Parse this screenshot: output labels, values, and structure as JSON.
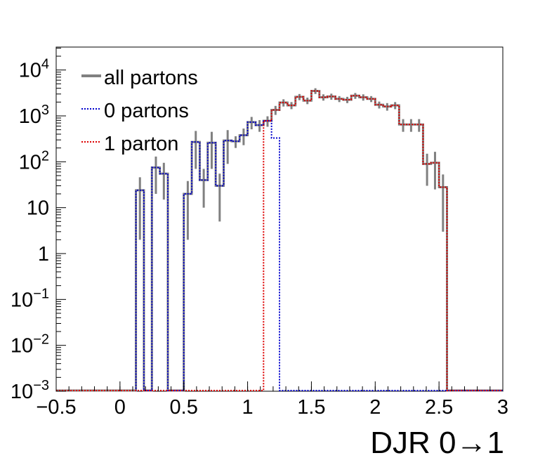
{
  "chart_data": {
    "type": "line",
    "title": "",
    "xlabel": "DJR 0→1",
    "ylabel": "",
    "xlim": [
      -0.5,
      3.0
    ],
    "ylim_log10": [
      -3,
      4.5
    ],
    "yscale": "log",
    "grid": false,
    "legend_placement": "top-left",
    "x_ticks": [
      "−0.5",
      "0",
      "0.5",
      "1",
      "1.5",
      "2",
      "2.5",
      "3"
    ],
    "y_ticks": [
      {
        "base": "10",
        "exp": "−3"
      },
      {
        "base": "10",
        "exp": "−2"
      },
      {
        "base": "10",
        "exp": "−1"
      },
      {
        "base": "1",
        "exp": ""
      },
      {
        "base": "10",
        "exp": ""
      },
      {
        "base": "10",
        "exp": "2"
      },
      {
        "base": "10",
        "exp": "3"
      },
      {
        "base": "10",
        "exp": "4"
      }
    ],
    "bin_edges": [
      -0.5,
      3.0
    ],
    "bin_width": 0.0625,
    "series": [
      {
        "name": "all partons",
        "color": "#808080",
        "style": "solid",
        "values": [
          0,
          0,
          0,
          0,
          0,
          0,
          0,
          0,
          0,
          0,
          24,
          0,
          75,
          55,
          0,
          0,
          20,
          270,
          40,
          260,
          30,
          290,
          280,
          380,
          730,
          630,
          780,
          1350,
          1950,
          1700,
          2600,
          2150,
          3500,
          2550,
          2650,
          2350,
          2250,
          2750,
          2550,
          2350,
          1750,
          1600,
          1700,
          650,
          650,
          650,
          90,
          95,
          28,
          0,
          0,
          0,
          0,
          0,
          0,
          0
        ],
        "errors": [
          0,
          0,
          0,
          0,
          0,
          0,
          0,
          0,
          0,
          0,
          22,
          0,
          55,
          40,
          0,
          0,
          18,
          200,
          30,
          190,
          25,
          200,
          80,
          150,
          220,
          180,
          200,
          300,
          350,
          300,
          400,
          350,
          500,
          400,
          400,
          350,
          350,
          400,
          400,
          350,
          300,
          300,
          300,
          200,
          200,
          200,
          60,
          70,
          25,
          0,
          0,
          0,
          0,
          0,
          0,
          0
        ]
      },
      {
        "name": "0 partons",
        "color": "#0000cc",
        "style": "dotted",
        "values": [
          0,
          0,
          0,
          0,
          0,
          0,
          0,
          0,
          0,
          0,
          24,
          0,
          75,
          55,
          0,
          0,
          20,
          270,
          40,
          260,
          30,
          290,
          280,
          380,
          730,
          630,
          780,
          330,
          0,
          0,
          0,
          0,
          0,
          0,
          0,
          0,
          0,
          0,
          0,
          0,
          0,
          0,
          0,
          0,
          0,
          0,
          0,
          0,
          0,
          0,
          0,
          0,
          0,
          0,
          0,
          0
        ]
      },
      {
        "name": "1 parton",
        "color": "#dd0000",
        "style": "dotted",
        "values": [
          0,
          0,
          0,
          0,
          0,
          0,
          0,
          0,
          0,
          0,
          0,
          0,
          0,
          0,
          0,
          0,
          0,
          0,
          0,
          0,
          0,
          0,
          0,
          0,
          0,
          0,
          780,
          1350,
          1950,
          1700,
          2600,
          2150,
          3500,
          2550,
          2650,
          2350,
          2250,
          2750,
          2550,
          2350,
          1750,
          1600,
          1700,
          650,
          650,
          650,
          90,
          95,
          28,
          0,
          0,
          0,
          0,
          0,
          0,
          0
        ]
      }
    ]
  }
}
